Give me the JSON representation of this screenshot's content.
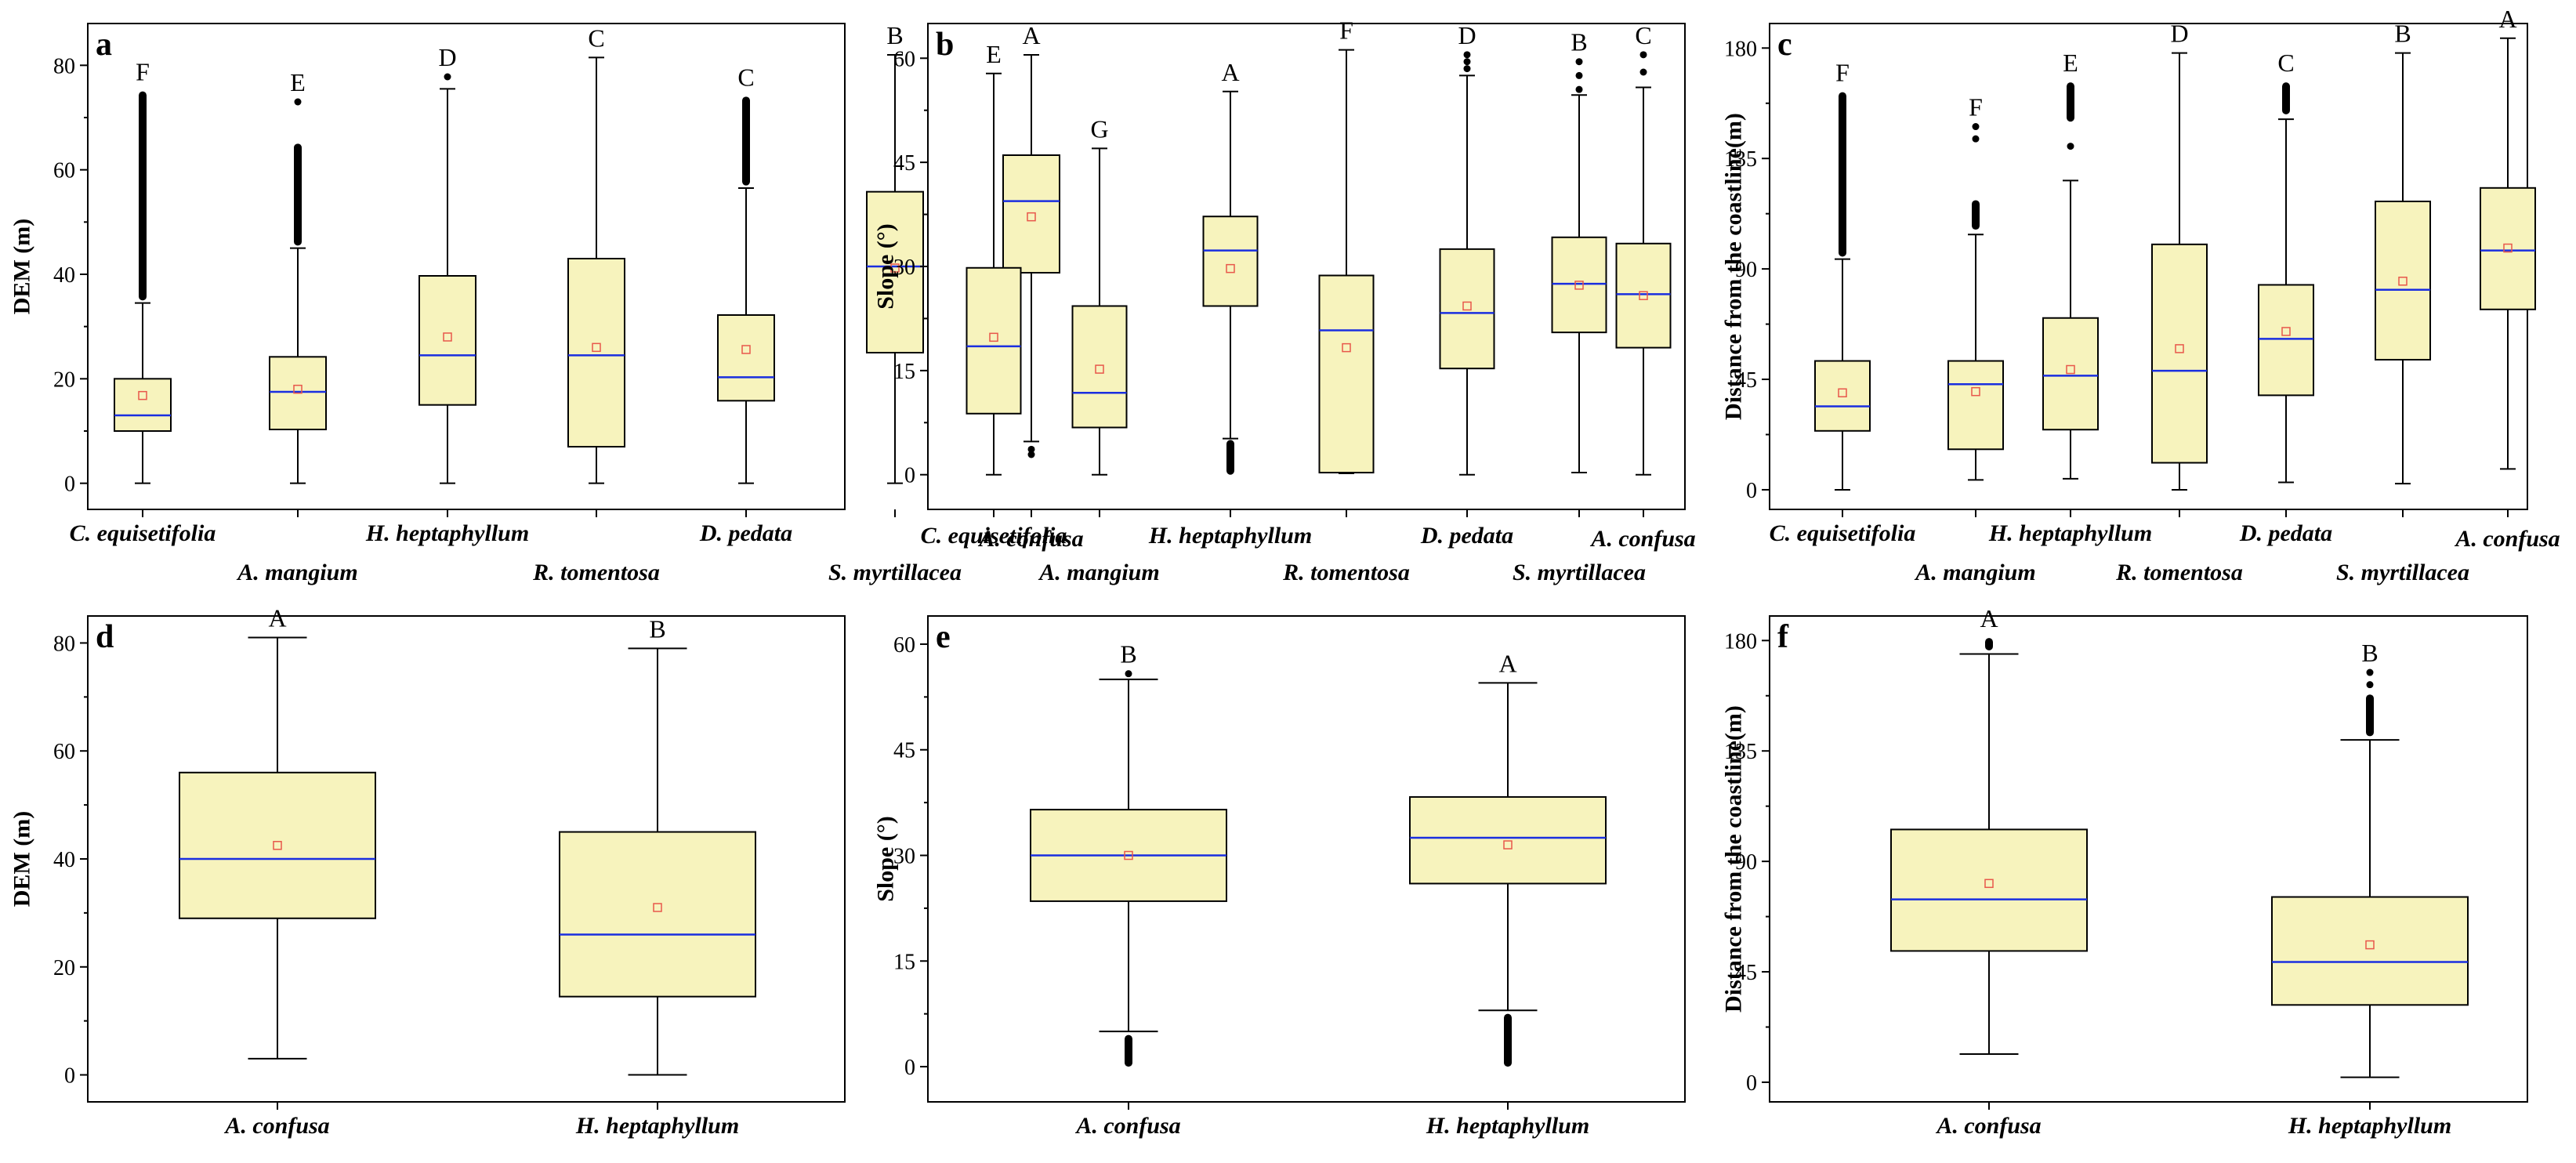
{
  "chart_data": [
    {
      "panel": "a",
      "type": "box",
      "ylabel": "DEM (m)",
      "ylim": [
        -5,
        88
      ],
      "yticks": [
        0,
        20,
        40,
        60,
        80
      ],
      "categories": [
        "C. equisetifolia",
        "A. mangium",
        "H. heptaphyllum",
        "R. tomentosa",
        "D. pedata",
        "S. myrtillacea",
        "A. confusa"
      ],
      "letters": [
        "F",
        "E",
        "D",
        "C",
        "C",
        "B",
        "A"
      ],
      "boxes": [
        {
          "min": 0,
          "q1": 10,
          "median": 13,
          "q3": 20,
          "max": 34.5,
          "mean": 16.8,
          "outliers": [
            [
              35,
              75
            ]
          ]
        },
        {
          "min": 0,
          "q1": 10.3,
          "median": 17.5,
          "q3": 24.2,
          "max": 45,
          "mean": 18,
          "outliers": [
            [
              45.5,
              65
            ],
            73
          ]
        },
        {
          "min": 0,
          "q1": 15,
          "median": 24.5,
          "q3": 39.7,
          "max": 75.5,
          "mean": 28,
          "outliers": [
            77.8
          ]
        },
        {
          "min": 0,
          "q1": 7,
          "median": 24.5,
          "q3": 43,
          "max": 81.5,
          "mean": 26,
          "outliers": []
        },
        {
          "min": 0,
          "q1": 15.8,
          "median": 20.3,
          "q3": 32.2,
          "max": 56.5,
          "mean": 25.6,
          "outliers": [
            [
              57,
              74
            ]
          ]
        },
        {
          "min": 0,
          "q1": 25,
          "median": 41.5,
          "q3": 55.8,
          "max": 82,
          "mean": 41.2,
          "outliers": []
        },
        {
          "min": 8,
          "q1": 40.3,
          "median": 54,
          "q3": 62.8,
          "max": 82,
          "mean": 51,
          "outliers": [
            5.5,
            6.5
          ]
        }
      ]
    },
    {
      "panel": "b",
      "type": "box",
      "ylabel": "Slope (°)",
      "ylim": [
        -5,
        65
      ],
      "yticks": [
        0,
        15,
        30,
        45,
        60
      ],
      "categories": [
        "C. equisetifolia",
        "A. mangium",
        "H. heptaphyllum",
        "R. tomentosa",
        "D. pedata",
        "S. myrtillacea",
        "A. confusa"
      ],
      "letters": [
        "E",
        "G",
        "A",
        "F",
        "D",
        "B",
        "C"
      ],
      "boxes": [
        {
          "min": 0,
          "q1": 8.8,
          "median": 18.5,
          "q3": 29.8,
          "max": 57.8,
          "mean": 19.8,
          "outliers": []
        },
        {
          "min": 0,
          "q1": 6.8,
          "median": 11.8,
          "q3": 24.3,
          "max": 47,
          "mean": 15.2,
          "outliers": []
        },
        {
          "min": 5.2,
          "q1": 24.3,
          "median": 32.3,
          "q3": 37.2,
          "max": 55.2,
          "mean": 29.7,
          "outliers": [
            [
              0,
              5
            ]
          ]
        },
        {
          "min": 0.2,
          "q1": 0.3,
          "median": 20.8,
          "q3": 28.7,
          "max": 61.2,
          "mean": 18.3,
          "outliers": []
        },
        {
          "min": 0,
          "q1": 15.3,
          "median": 23.3,
          "q3": 32.5,
          "max": 57.5,
          "mean": 24.3,
          "outliers": [
            58.5,
            59.5,
            60.5
          ]
        },
        {
          "min": 0.3,
          "q1": 20.5,
          "median": 27.5,
          "q3": 34.2,
          "max": 54.7,
          "mean": 27.3,
          "outliers": [
            55.5,
            57.5,
            59.5
          ]
        },
        {
          "min": 0,
          "q1": 18.3,
          "median": 26,
          "q3": 33.3,
          "max": 55.8,
          "mean": 25.8,
          "outliers": [
            58,
            60.5
          ]
        }
      ]
    },
    {
      "panel": "c",
      "type": "box",
      "ylabel": "Distance from the coastline(m)",
      "ylim": [
        -8,
        190
      ],
      "yticks": [
        0,
        45,
        90,
        135,
        180
      ],
      "categories": [
        "C. equisetifolia",
        "A. mangium",
        "H. heptaphyllum",
        "R. tomentosa",
        "D. pedata",
        "S. myrtillacea",
        "A. confusa"
      ],
      "letters": [
        "F",
        "F",
        "E",
        "D",
        "C",
        "B",
        "A"
      ],
      "boxes": [
        {
          "min": 0,
          "q1": 24,
          "median": 34,
          "q3": 52.5,
          "max": 94,
          "mean": 39.5,
          "outliers": [
            [
              95,
              162
            ]
          ]
        },
        {
          "min": 4,
          "q1": 16.5,
          "median": 43,
          "q3": 52.5,
          "max": 104,
          "mean": 40,
          "outliers": [
            [
              106,
              118
            ],
            143,
            148
          ]
        },
        {
          "min": 4.5,
          "q1": 24.5,
          "median": 46.5,
          "q3": 70,
          "max": 126,
          "mean": 49,
          "outliers": [
            140,
            [
              150,
              166
            ]
          ]
        },
        {
          "min": 0,
          "q1": 11,
          "median": 48.5,
          "q3": 100,
          "max": 178,
          "mean": 57.5,
          "outliers": []
        },
        {
          "min": 3,
          "q1": 38.5,
          "median": 61.5,
          "q3": 83.5,
          "max": 151,
          "mean": 64.5,
          "outliers": [
            [
              153,
              166
            ]
          ]
        },
        {
          "min": 2.5,
          "q1": 53,
          "median": 81.5,
          "q3": 117.5,
          "max": 178,
          "mean": 85,
          "outliers": []
        },
        {
          "min": 8.5,
          "q1": 73.5,
          "median": 97.5,
          "q3": 123,
          "max": 184,
          "mean": 98.5,
          "outliers": []
        }
      ]
    },
    {
      "panel": "d",
      "type": "box",
      "ylabel": "DEM (m)",
      "ylim": [
        -5,
        85
      ],
      "yticks": [
        0,
        20,
        40,
        60,
        80
      ],
      "categories": [
        "A. confusa",
        "H. heptaphyllum"
      ],
      "letters": [
        "A",
        "B"
      ],
      "boxes": [
        {
          "min": 3,
          "q1": 29,
          "median": 40,
          "q3": 56,
          "max": 81,
          "mean": 42.5,
          "outliers": []
        },
        {
          "min": 0,
          "q1": 14.5,
          "median": 26,
          "q3": 45,
          "max": 79,
          "mean": 31,
          "outliers": []
        }
      ]
    },
    {
      "panel": "e",
      "type": "box",
      "ylabel": "Slope (°)",
      "ylim": [
        -5,
        64
      ],
      "yticks": [
        0,
        15,
        30,
        45,
        60
      ],
      "categories": [
        "A. confusa",
        "H. heptaphyllum"
      ],
      "letters": [
        "B",
        "A"
      ],
      "boxes": [
        {
          "min": 5,
          "q1": 23.5,
          "median": 30,
          "q3": 36.5,
          "max": 55,
          "mean": 30,
          "outliers": [
            [
              0,
              4.5
            ],
            55.8
          ]
        },
        {
          "min": 8,
          "q1": 26,
          "median": 32.5,
          "q3": 38.3,
          "max": 54.5,
          "mean": 31.5,
          "outliers": [
            [
              0,
              7.5
            ]
          ]
        }
      ]
    },
    {
      "panel": "f",
      "type": "box",
      "ylabel": "Distance from the coastline(m)",
      "ylim": [
        -8,
        190
      ],
      "yticks": [
        0,
        45,
        90,
        135,
        180
      ],
      "categories": [
        "A. confusa",
        "H. heptaphyllum"
      ],
      "letters": [
        "A",
        "B"
      ],
      "boxes": [
        {
          "min": 11.5,
          "q1": 53.5,
          "median": 74.5,
          "q3": 103,
          "max": 174.5,
          "mean": 81,
          "outliers": [
            [
              176,
              181
            ]
          ]
        },
        {
          "min": 2,
          "q1": 31.5,
          "median": 49,
          "q3": 75.5,
          "max": 139.5,
          "mean": 56,
          "outliers": [
            [
              141,
              158
            ],
            162,
            167
          ]
        }
      ]
    }
  ],
  "colors": {
    "box_fill": "#f7f3bd",
    "median": "#1a2ee0",
    "mean": "#e8574b",
    "line": "#000000"
  }
}
